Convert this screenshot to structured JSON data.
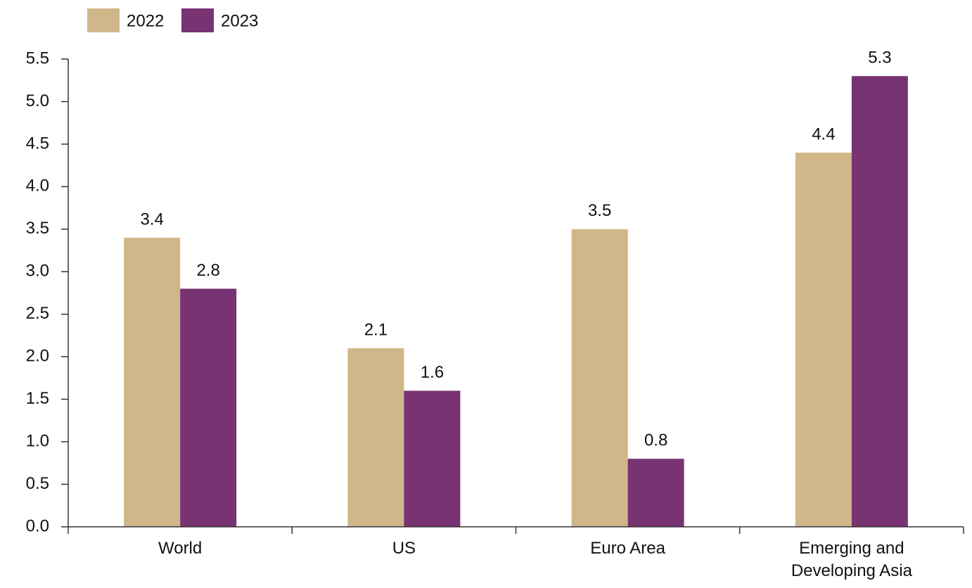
{
  "chart_data": {
    "type": "bar",
    "categories": [
      "World",
      "US",
      "Euro Area",
      "Emerging and Developing Asia"
    ],
    "series": [
      {
        "name": "2022",
        "color": "#cfb789",
        "values": [
          3.4,
          2.1,
          3.5,
          4.4
        ]
      },
      {
        "name": "2023",
        "color": "#783372",
        "values": [
          2.8,
          1.6,
          0.8,
          5.3
        ]
      }
    ],
    "ylim": [
      0,
      5.5
    ],
    "yticks": [
      {
        "value": 0,
        "label": "0.0"
      },
      0.5,
      {
        "value": 1,
        "label": "1.0"
      },
      1.5,
      {
        "value": 2,
        "label": "2.0"
      },
      2.5,
      {
        "value": 3,
        "label": "3.0"
      },
      3.5,
      {
        "value": 4,
        "label": "4.0"
      },
      4.5,
      {
        "value": 5,
        "label": "5.0"
      },
      5.5
    ],
    "legend": "top-left"
  }
}
